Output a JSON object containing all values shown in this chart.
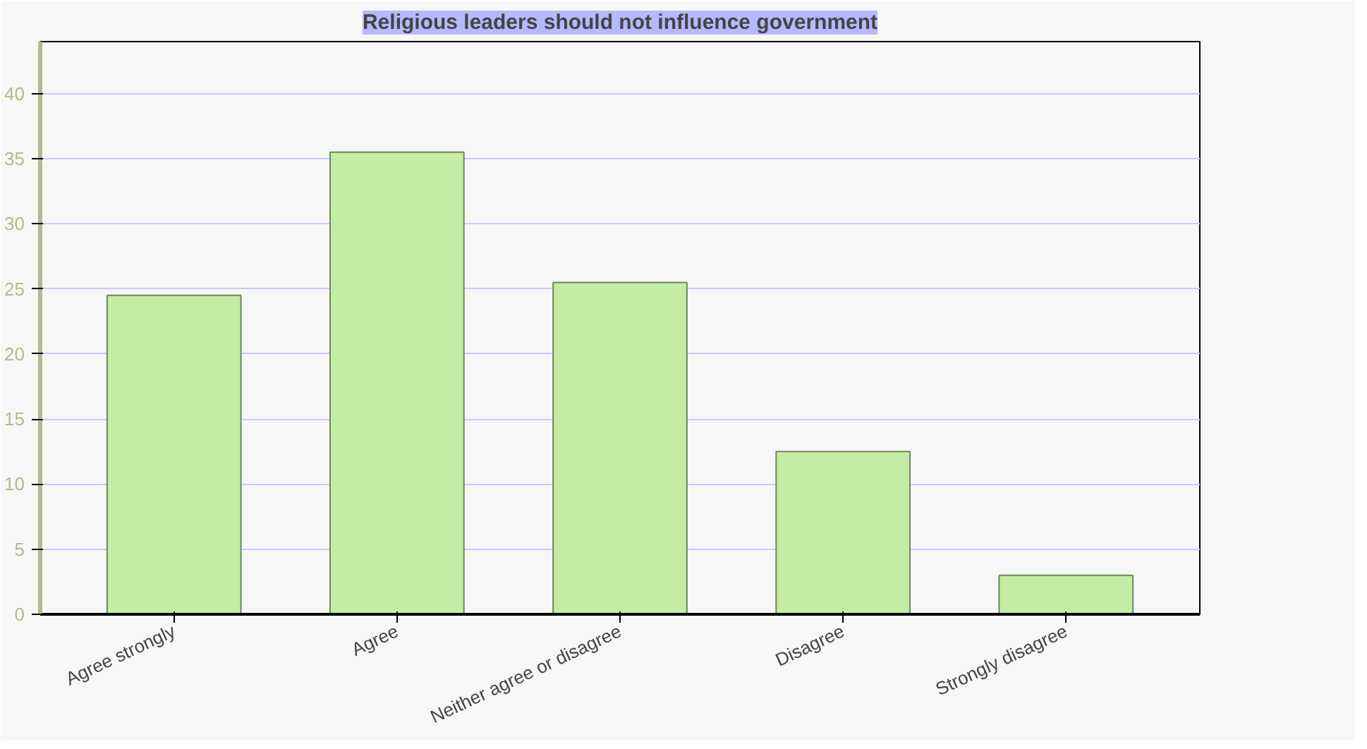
{
  "chart_data": {
    "type": "bar",
    "title": "Religious leaders should not influence government",
    "categories": [
      "Agree strongly",
      "Agree",
      "Neither agree or disagree",
      "Disagree",
      "Strongly disagree"
    ],
    "values": [
      24.5,
      35.5,
      25.5,
      12.5,
      3
    ],
    "color": "#c4eca4",
    "ylim": [
      0,
      44
    ],
    "yticks": [
      0,
      5,
      10,
      15,
      20,
      25,
      30,
      35,
      40
    ],
    "grid": "y"
  }
}
